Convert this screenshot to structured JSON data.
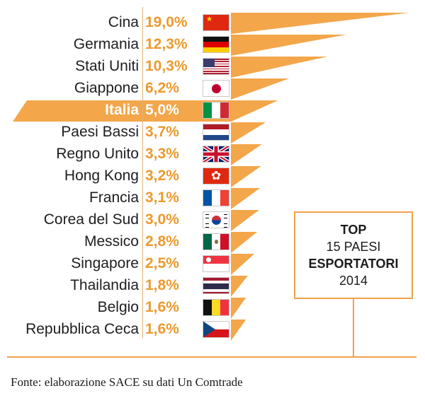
{
  "chart_data": {
    "type": "bar",
    "title": "TOP 15 PAESI ESPORTATORI 2014",
    "categories": [
      "Cina",
      "Germania",
      "Stati Uniti",
      "Giappone",
      "Italia",
      "Paesi Bassi",
      "Regno Unito",
      "Hong Kong",
      "Francia",
      "Corea del Sud",
      "Messico",
      "Singapore",
      "Thailandia",
      "Belgio",
      "Repubblica Ceca"
    ],
    "values": [
      19.0,
      12.3,
      10.3,
      6.2,
      5.0,
      3.7,
      3.3,
      3.2,
      3.1,
      3.0,
      2.8,
      2.5,
      1.8,
      1.6,
      1.6
    ],
    "value_labels": [
      "19,0%",
      "12,3%",
      "10,3%",
      "6,2%",
      "5,0%",
      "3,7%",
      "3,3%",
      "3,2%",
      "3,1%",
      "3,0%",
      "2,8%",
      "2,5%",
      "1,8%",
      "1,6%",
      "1,6%"
    ],
    "unit": "%",
    "highlighted": "Italia",
    "flags": [
      "china",
      "germany",
      "usa",
      "japan",
      "italy",
      "netherlands",
      "uk",
      "hongkong",
      "france",
      "southkorea",
      "mexico",
      "singapore",
      "thailand",
      "belgium",
      "czechia"
    ],
    "colors": {
      "bar": "#f3a64a",
      "highlight": "#f3a64a",
      "value_text": "#ec9a2e",
      "label_text": "#1e1e1e"
    },
    "grid": false,
    "legend": "none"
  },
  "box": {
    "line1": "TOP",
    "line2": "15 PAESI",
    "line3": "ESPORTATORI",
    "line4": "2014"
  },
  "source": "Fonte: elaborazione SACE su dati Un Comtrade"
}
